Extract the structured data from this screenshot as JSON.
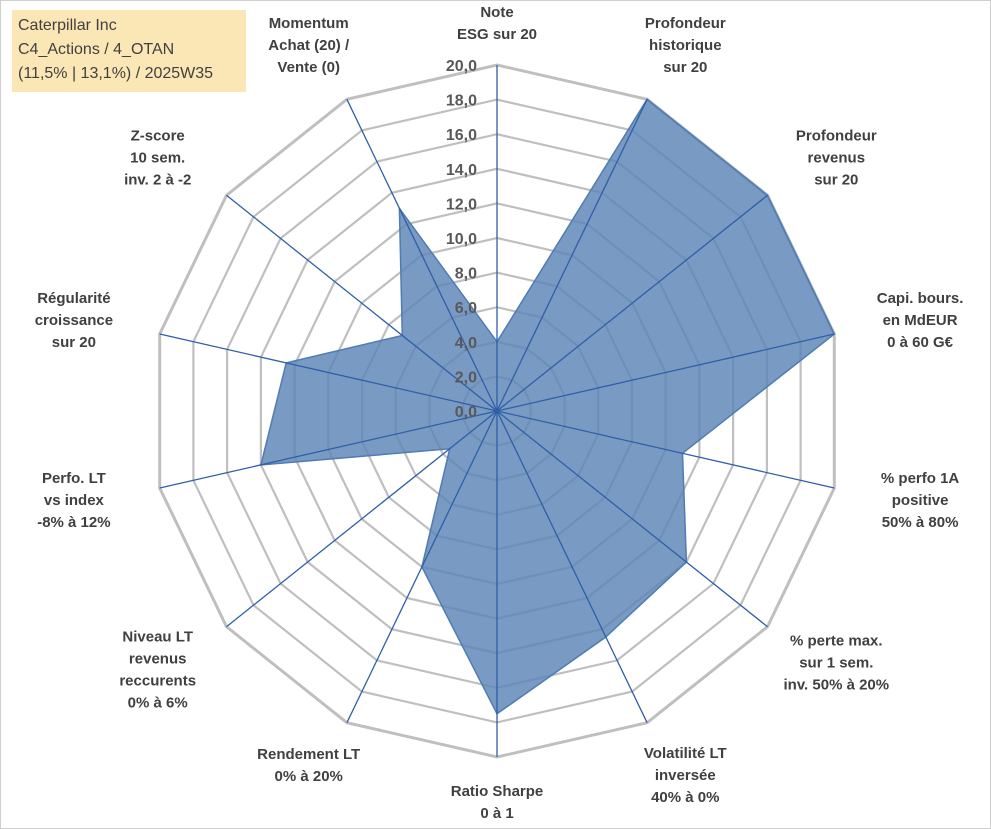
{
  "title_box": {
    "line1": "Caterpillar Inc",
    "line2": "C4_Actions / 4_OTAN",
    "line3": "(11,5% | 13,1%) / 2025W35"
  },
  "colors": {
    "fill": "#5b84b6",
    "stroke": "#4f7cb3",
    "spoke": "#2f5fa8",
    "grid": "#bfbfbf",
    "title_bg": "#fbe7b5"
  },
  "chart_data": {
    "type": "radar",
    "range": [
      0,
      20
    ],
    "grid": true,
    "tick_labels": [
      "0,0",
      "2,0",
      "4,0",
      "6,0",
      "8,0",
      "10,0",
      "12,0",
      "14,0",
      "16,0",
      "18,0",
      "20,0"
    ],
    "categories": [
      [
        "Note",
        "ESG sur 20"
      ],
      [
        "Profondeur",
        "historique",
        "sur 20"
      ],
      [
        "Profondeur",
        "revenus",
        "sur 20"
      ],
      [
        "Capi. bours.",
        "en MdEUR",
        "0 à 60 G€"
      ],
      [
        "% perfo 1A",
        "positive",
        "50% à 80%"
      ],
      [
        "% perte max.",
        "sur 1 sem.",
        "inv. 50% à 20%"
      ],
      [
        "Volatilité LT",
        "inversée",
        "40% à 0%"
      ],
      [
        "Ratio Sharpe",
        "0 à 1"
      ],
      [
        "Rendement LT",
        "0% à 20%"
      ],
      [
        "Niveau LT",
        "revenus",
        "reccurents",
        "0% à 6%"
      ],
      [
        "Perfo. LT",
        "vs index",
        "-8% à 12%"
      ],
      [
        "Régularité",
        "croissance",
        "sur 20"
      ],
      [
        "Z-score",
        "10 sem.",
        "inv. 2 à -2"
      ],
      [
        "Momentum",
        "Achat (20) /",
        "Vente (0)"
      ]
    ],
    "values": [
      4.0,
      20.0,
      20.0,
      20.0,
      11.0,
      14.0,
      14.5,
      17.5,
      10.0,
      3.5,
      14.0,
      12.5,
      7.0,
      13.0
    ]
  }
}
